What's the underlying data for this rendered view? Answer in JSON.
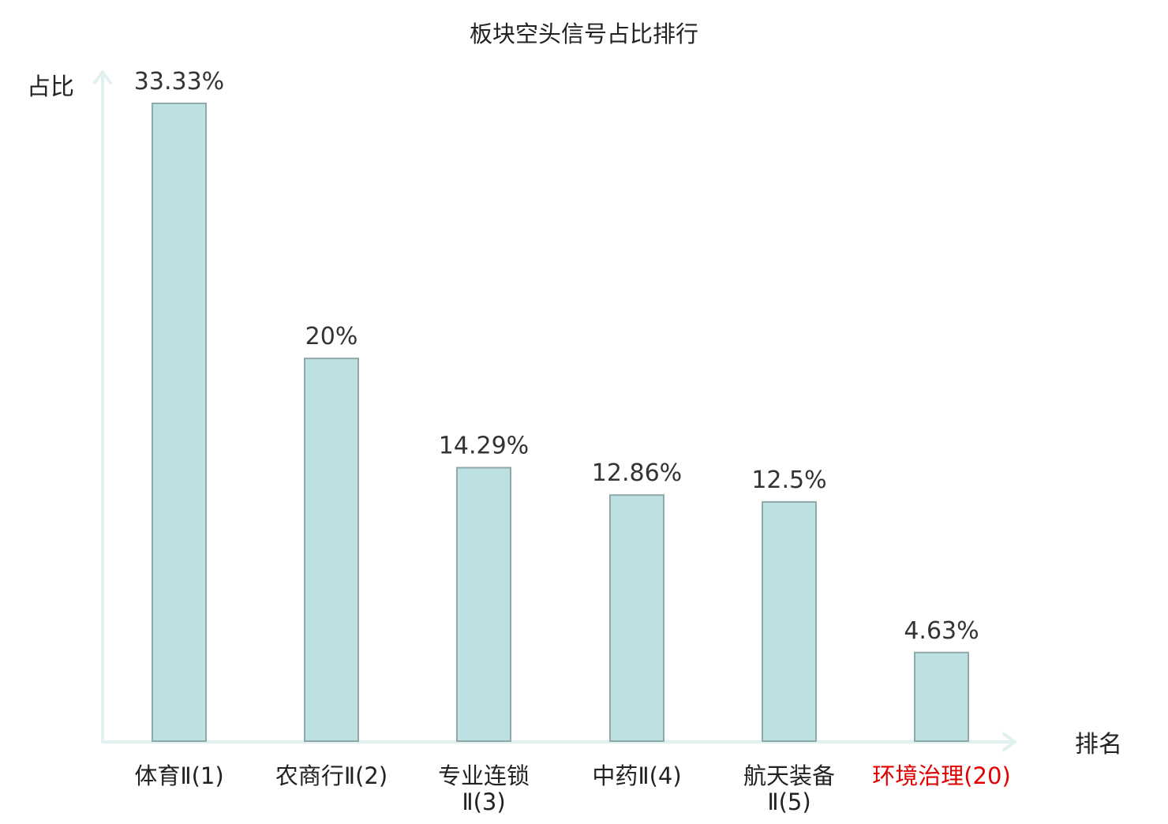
{
  "chart_data": {
    "type": "bar",
    "title": "板块空头信号占比排行",
    "ylabel": "占比",
    "xlabel": "排名",
    "categories": [
      {
        "line1": "体育Ⅱ(1)",
        "line2": "",
        "highlight": false
      },
      {
        "line1": "农商行Ⅱ(2)",
        "line2": "",
        "highlight": false
      },
      {
        "line1": "专业连锁",
        "line2": "Ⅱ(3)",
        "highlight": false
      },
      {
        "line1": "中药Ⅱ(4)",
        "line2": "",
        "highlight": false
      },
      {
        "line1": "航天装备",
        "line2": "Ⅱ(5)",
        "highlight": false
      },
      {
        "line1": "环境治理(20)",
        "line2": "",
        "highlight": true
      }
    ],
    "values": [
      33.33,
      20,
      14.29,
      12.86,
      12.5,
      4.63
    ],
    "value_labels": [
      "33.33%",
      "20%",
      "14.29%",
      "12.86%",
      "12.5%",
      "4.63%"
    ],
    "ylim": [
      0,
      33.33
    ],
    "grid": false,
    "legend": "none",
    "colors": {
      "bar_fill": "#bde0e3",
      "bar_stroke": "#8fa9ab",
      "axis": "#dff2ef",
      "highlight_label": "#e00000",
      "label": "#222222"
    }
  }
}
